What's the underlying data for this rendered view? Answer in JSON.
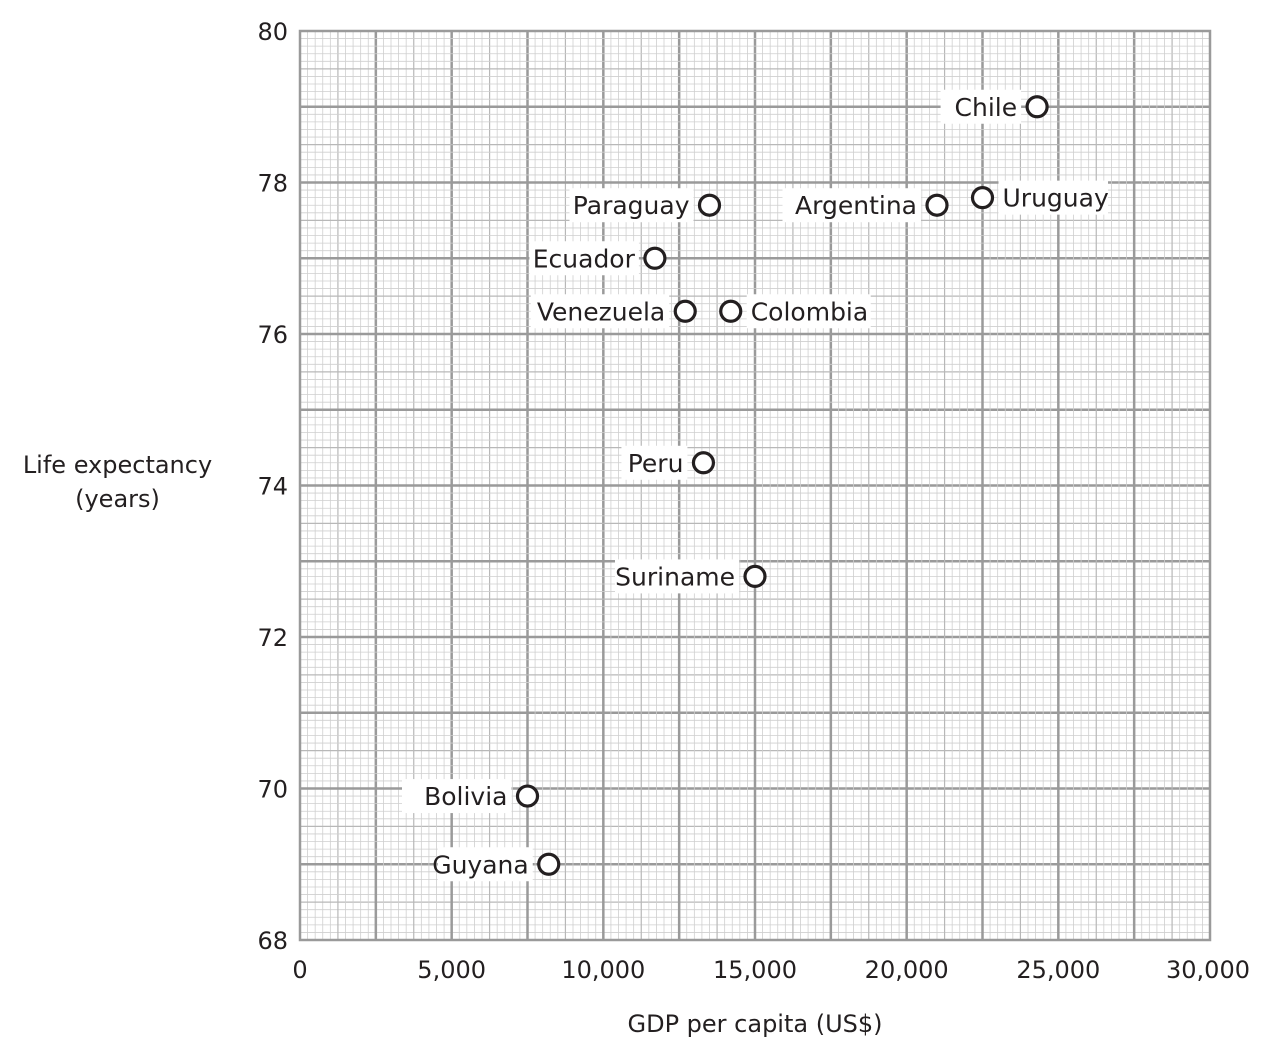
{
  "chart_data": {
    "type": "scatter",
    "title": "",
    "xlabel": "GDP per capita (US$)",
    "ylabel": [
      "Life expectancy",
      "(years)"
    ],
    "xlim": [
      0,
      30000
    ],
    "ylim": [
      68,
      80
    ],
    "x_ticks": [
      0,
      5000,
      10000,
      15000,
      20000,
      25000,
      30000
    ],
    "x_tick_labels": [
      "0",
      "5,000",
      "10,000",
      "15,000",
      "20,000",
      "25,000",
      "30,000"
    ],
    "y_ticks": [
      68,
      70,
      72,
      74,
      76,
      78,
      80
    ],
    "y_tick_labels": [
      "68",
      "70",
      "72",
      "74",
      "76",
      "78",
      "80"
    ],
    "grid": true,
    "points": [
      {
        "label": "Chile",
        "x": 24300,
        "y": 79.0,
        "label_side": "left"
      },
      {
        "label": "Uruguay",
        "x": 22500,
        "y": 77.8,
        "label_side": "right"
      },
      {
        "label": "Argentina",
        "x": 21000,
        "y": 77.7,
        "label_side": "left"
      },
      {
        "label": "Paraguay",
        "x": 13500,
        "y": 77.7,
        "label_side": "left"
      },
      {
        "label": "Ecuador",
        "x": 11700,
        "y": 77.0,
        "label_side": "left"
      },
      {
        "label": "Venezuela",
        "x": 12700,
        "y": 76.3,
        "label_side": "left"
      },
      {
        "label": "Colombia",
        "x": 14200,
        "y": 76.3,
        "label_side": "right"
      },
      {
        "label": "Peru",
        "x": 13300,
        "y": 74.3,
        "label_side": "left"
      },
      {
        "label": "Suriname",
        "x": 15000,
        "y": 72.8,
        "label_side": "left"
      },
      {
        "label": "Bolivia",
        "x": 7500,
        "y": 69.9,
        "label_side": "left"
      },
      {
        "label": "Guyana",
        "x": 8200,
        "y": 69.0,
        "label_side": "left"
      }
    ]
  }
}
